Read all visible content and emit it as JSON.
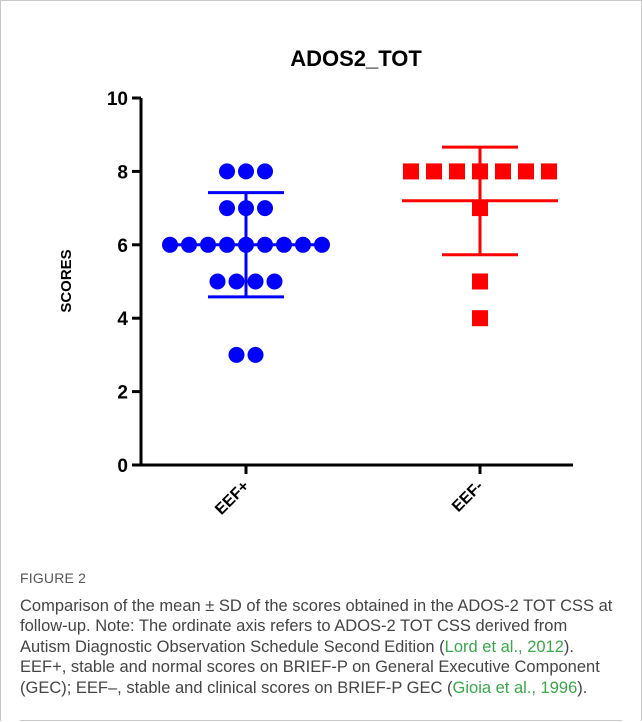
{
  "chart_data": {
    "type": "scatter",
    "title": "ADOS2_TOT",
    "ylabel": "SCORES",
    "xlabel": "",
    "ylim": [
      0,
      10
    ],
    "yticks": [
      "0",
      "2",
      "4",
      "6",
      "8",
      "10"
    ],
    "categories": [
      "EEF+",
      "EEF-"
    ],
    "series": [
      {
        "category": "EEF+",
        "color": "#0000ff",
        "marker": "circle",
        "points": [
          8,
          8,
          8,
          7,
          7,
          7,
          6,
          6,
          6,
          6,
          6,
          6,
          6,
          6,
          6,
          5,
          5,
          5,
          5,
          3,
          3
        ],
        "mean": 6.0,
        "sd_upper": 7.42,
        "sd_lower": 4.58
      },
      {
        "category": "EEF-",
        "color": "#ff0000",
        "marker": "square",
        "points": [
          8,
          8,
          8,
          8,
          8,
          8,
          8,
          7,
          5,
          4
        ],
        "mean": 7.2,
        "sd_upper": 8.66,
        "sd_lower": 5.73
      }
    ]
  },
  "figure": {
    "label": "FIGURE 2",
    "caption_parts": [
      {
        "text": "Comparison of the mean ",
        "cite": false
      },
      {
        "text": "±",
        "cite": false
      },
      {
        "text": " SD of the scores obtained in the ADOS-2 TOT CSS at follow-up. Note: The ordinate axis refers to ADOS-2 TOT CSS derived from Autism Diagnostic Observation Schedule Second Edition (",
        "cite": false
      },
      {
        "text": "Lord et al., 2012",
        "cite": true
      },
      {
        "text": "). EEF+, stable and normal scores on BRIEF-P on General Executive Component (GEC); EEF–, stable and clinical scores on BRIEF-P GEC (",
        "cite": false
      },
      {
        "text": "Gioia et al., 1996",
        "cite": true
      },
      {
        "text": ").",
        "cite": false
      }
    ]
  }
}
